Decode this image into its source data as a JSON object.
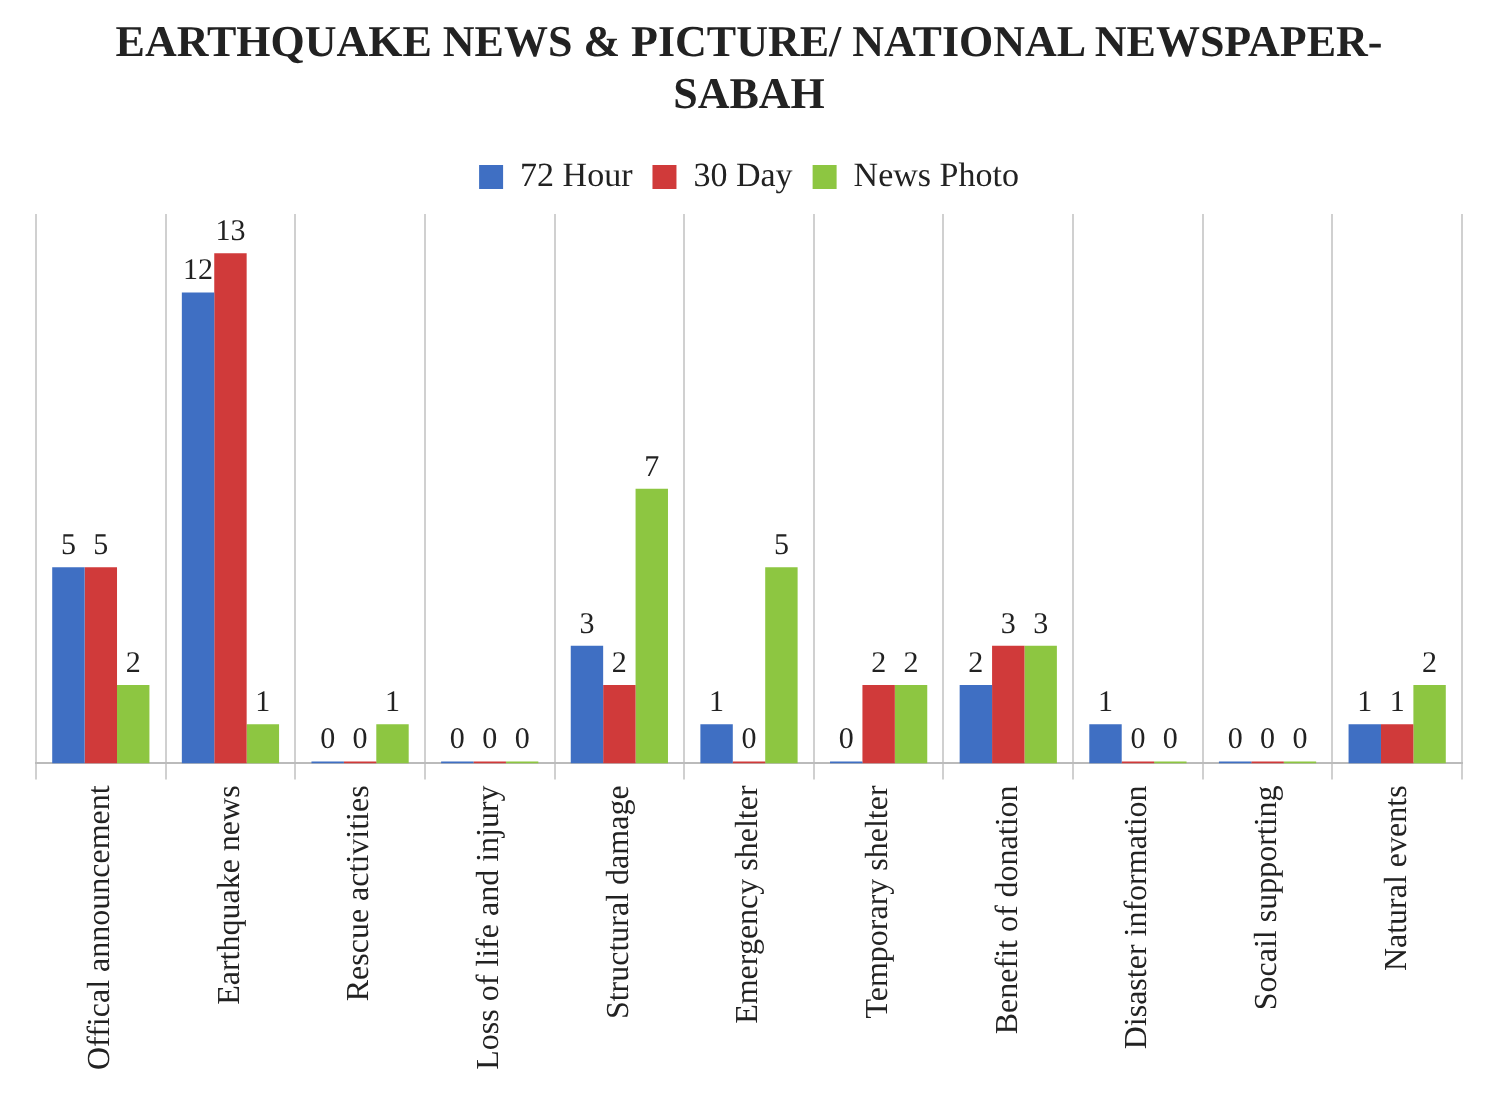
{
  "chart_data": {
    "type": "bar",
    "title": "EARTHQUAKE NEWS & PICTURE/ NATIONAL NEWSPAPER- SABAH",
    "categories": [
      "Offical announcement",
      "Earthquake news",
      "Rescue activities",
      "Loss of life and injury",
      "Structural damage",
      "Emergency shelter",
      "Temporary shelter",
      "Benefit of donation",
      "Disaster information",
      "Socail supporting",
      "Natural events"
    ],
    "series": [
      {
        "name": "72 Hour",
        "color": "#3f6fc3",
        "values": [
          5,
          12,
          0,
          0,
          3,
          1,
          0,
          2,
          1,
          0,
          1
        ]
      },
      {
        "name": "30 Day",
        "color": "#d03a3a",
        "values": [
          5,
          13,
          0,
          0,
          2,
          0,
          2,
          3,
          0,
          0,
          1
        ]
      },
      {
        "name": "News Photo",
        "color": "#8dc641",
        "values": [
          2,
          1,
          1,
          0,
          7,
          5,
          2,
          3,
          0,
          0,
          2
        ]
      }
    ],
    "data_labels": true,
    "grid": "x",
    "legend": "top"
  }
}
